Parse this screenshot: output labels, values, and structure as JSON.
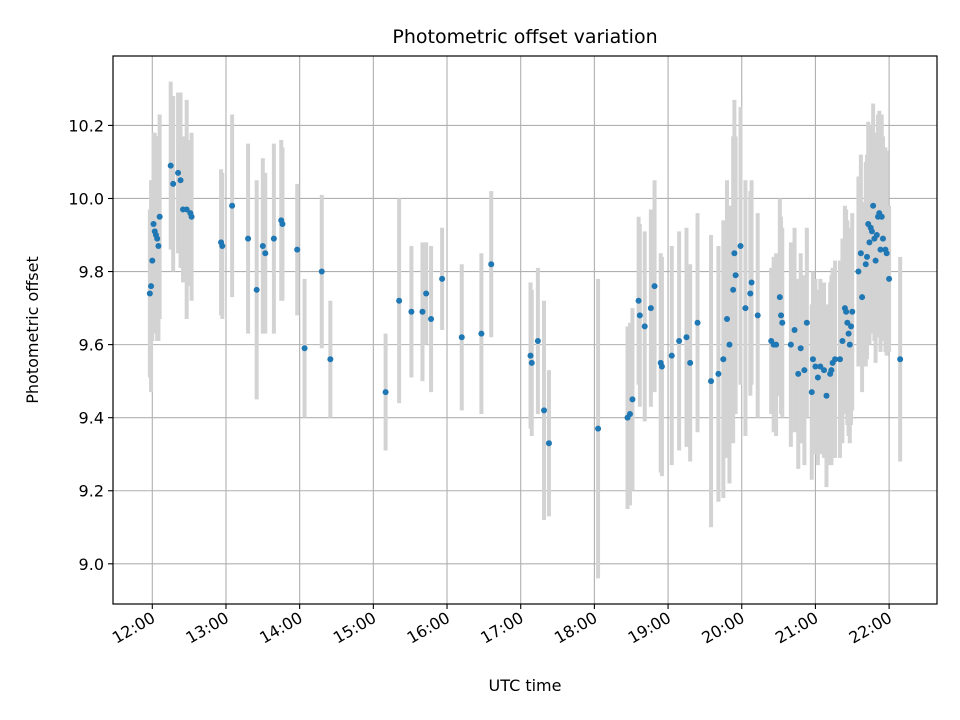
{
  "chart_data": {
    "type": "scatter",
    "title": "Photometric offset variation",
    "xlabel": "UTC time",
    "ylabel": "Photometric offset",
    "x_unit": "UTC time (HH:MM)",
    "xlim": [
      "11:28",
      "22:39"
    ],
    "ylim": [
      8.89,
      10.39
    ],
    "grid": true,
    "xticks": [
      "12:00",
      "13:00",
      "14:00",
      "15:00",
      "16:00",
      "17:00",
      "18:00",
      "19:00",
      "20:00",
      "21:00",
      "22:00"
    ],
    "yticks": [
      9.0,
      9.2,
      9.4,
      9.6,
      9.8,
      10.0,
      10.2
    ],
    "ytick_labels": [
      "9.0",
      "9.2",
      "9.4",
      "9.6",
      "9.8",
      "10.0",
      "10.2"
    ],
    "colors": {
      "point": "#1f77b4",
      "errorbar": "#d3d3d3",
      "grid": "#b0b0b0"
    },
    "series": [
      {
        "points": [
          {
            "x": "11:58",
            "y": 9.74,
            "err": 0.23
          },
          {
            "x": "11:59",
            "y": 9.76,
            "err": 0.29
          },
          {
            "x": "12:00",
            "y": 9.83,
            "err": 0.22
          },
          {
            "x": "12:01",
            "y": 9.93,
            "err": 0.25
          },
          {
            "x": "12:02",
            "y": 9.91,
            "err": 0.27
          },
          {
            "x": "12:03",
            "y": 9.9,
            "err": 0.27
          },
          {
            "x": "12:04",
            "y": 9.89,
            "err": 0.28
          },
          {
            "x": "12:05",
            "y": 9.87,
            "err": 0.26
          },
          {
            "x": "12:06",
            "y": 9.95,
            "err": 0.28
          },
          {
            "x": "12:15",
            "y": 10.09,
            "err": 0.23
          },
          {
            "x": "12:17",
            "y": 10.04,
            "err": 0.24
          },
          {
            "x": "12:21",
            "y": 10.07,
            "err": 0.22
          },
          {
            "x": "12:23",
            "y": 10.05,
            "err": 0.24
          },
          {
            "x": "12:25",
            "y": 9.97,
            "err": 0.2
          },
          {
            "x": "12:28",
            "y": 9.97,
            "err": 0.3
          },
          {
            "x": "12:31",
            "y": 9.96,
            "err": 0.2
          },
          {
            "x": "12:32",
            "y": 9.95,
            "err": 0.23
          },
          {
            "x": "12:56",
            "y": 9.88,
            "err": 0.2
          },
          {
            "x": "12:57",
            "y": 9.87,
            "err": 0.2
          },
          {
            "x": "13:05",
            "y": 9.98,
            "err": 0.25
          },
          {
            "x": "13:18",
            "y": 9.89,
            "err": 0.26
          },
          {
            "x": "13:25",
            "y": 9.75,
            "err": 0.3
          },
          {
            "x": "13:30",
            "y": 9.87,
            "err": 0.24
          },
          {
            "x": "13:32",
            "y": 9.85,
            "err": 0.22
          },
          {
            "x": "13:39",
            "y": 9.89,
            "err": 0.26
          },
          {
            "x": "13:45",
            "y": 9.94,
            "err": 0.22
          },
          {
            "x": "13:46",
            "y": 9.93,
            "err": 0.21
          },
          {
            "x": "13:58",
            "y": 9.86,
            "err": 0.18
          },
          {
            "x": "14:04",
            "y": 9.59,
            "err": 0.19
          },
          {
            "x": "14:18",
            "y": 9.8,
            "err": 0.21
          },
          {
            "x": "14:25",
            "y": 9.56,
            "err": 0.16
          },
          {
            "x": "15:10",
            "y": 9.47,
            "err": 0.16
          },
          {
            "x": "15:21",
            "y": 9.72,
            "err": 0.28
          },
          {
            "x": "15:31",
            "y": 9.69,
            "err": 0.18
          },
          {
            "x": "15:40",
            "y": 9.69,
            "err": 0.19
          },
          {
            "x": "15:43",
            "y": 9.74,
            "err": 0.14
          },
          {
            "x": "15:47",
            "y": 9.67,
            "err": 0.2
          },
          {
            "x": "15:56",
            "y": 9.78,
            "err": 0.14
          },
          {
            "x": "16:12",
            "y": 9.62,
            "err": 0.2
          },
          {
            "x": "16:28",
            "y": 9.63,
            "err": 0.22
          },
          {
            "x": "16:36",
            "y": 9.82,
            "err": 0.2
          },
          {
            "x": "17:08",
            "y": 9.57,
            "err": 0.2
          },
          {
            "x": "17:09",
            "y": 9.55,
            "err": 0.2
          },
          {
            "x": "17:14",
            "y": 9.61,
            "err": 0.2
          },
          {
            "x": "17:19",
            "y": 9.42,
            "err": 0.3
          },
          {
            "x": "17:23",
            "y": 9.33,
            "err": 0.2
          },
          {
            "x": "18:03",
            "y": 9.37,
            "err": 0.41
          },
          {
            "x": "18:27",
            "y": 9.4,
            "err": 0.25
          },
          {
            "x": "18:29",
            "y": 9.41,
            "err": 0.25
          },
          {
            "x": "18:31",
            "y": 9.45,
            "err": 0.25
          },
          {
            "x": "18:36",
            "y": 9.72,
            "err": 0.23
          },
          {
            "x": "18:37",
            "y": 9.68,
            "err": 0.25
          },
          {
            "x": "18:41",
            "y": 9.65,
            "err": 0.26
          },
          {
            "x": "18:46",
            "y": 9.7,
            "err": 0.27
          },
          {
            "x": "18:49",
            "y": 9.76,
            "err": 0.29
          },
          {
            "x": "18:54",
            "y": 9.55,
            "err": 0.3
          },
          {
            "x": "18:55",
            "y": 9.54,
            "err": 0.3
          },
          {
            "x": "19:03",
            "y": 9.57,
            "err": 0.3
          },
          {
            "x": "19:09",
            "y": 9.61,
            "err": 0.3
          },
          {
            "x": "19:15",
            "y": 9.62,
            "err": 0.3
          },
          {
            "x": "19:18",
            "y": 9.55,
            "err": 0.27
          },
          {
            "x": "19:24",
            "y": 9.66,
            "err": 0.3
          },
          {
            "x": "19:35",
            "y": 9.5,
            "err": 0.4
          },
          {
            "x": "19:41",
            "y": 9.52,
            "err": 0.35
          },
          {
            "x": "19:45",
            "y": 9.56,
            "err": 0.38
          },
          {
            "x": "19:48",
            "y": 9.67,
            "err": 0.38
          },
          {
            "x": "19:50",
            "y": 9.6,
            "err": 0.38
          },
          {
            "x": "19:53",
            "y": 9.75,
            "err": 0.42
          },
          {
            "x": "19:54",
            "y": 9.85,
            "err": 0.42
          },
          {
            "x": "19:55",
            "y": 9.79,
            "err": 0.38
          },
          {
            "x": "19:59",
            "y": 9.87,
            "err": 0.38
          },
          {
            "x": "20:03",
            "y": 9.7,
            "err": 0.35
          },
          {
            "x": "20:07",
            "y": 9.74,
            "err": 0.28
          },
          {
            "x": "20:08",
            "y": 9.77,
            "err": 0.28
          },
          {
            "x": "20:13",
            "y": 9.68,
            "err": 0.28
          },
          {
            "x": "20:24",
            "y": 9.61,
            "err": 0.2
          },
          {
            "x": "20:26",
            "y": 9.6,
            "err": 0.24
          },
          {
            "x": "20:28",
            "y": 9.6,
            "err": 0.25
          },
          {
            "x": "20:31",
            "y": 9.73,
            "err": 0.27
          },
          {
            "x": "20:32",
            "y": 9.68,
            "err": 0.27
          },
          {
            "x": "20:33",
            "y": 9.66,
            "err": 0.26
          },
          {
            "x": "20:40",
            "y": 9.6,
            "err": 0.28
          },
          {
            "x": "20:43",
            "y": 9.64,
            "err": 0.28
          },
          {
            "x": "20:46",
            "y": 9.52,
            "err": 0.26
          },
          {
            "x": "20:48",
            "y": 9.59,
            "err": 0.26
          },
          {
            "x": "20:51",
            "y": 9.53,
            "err": 0.26
          },
          {
            "x": "20:53",
            "y": 9.66,
            "err": 0.26
          },
          {
            "x": "20:57",
            "y": 9.47,
            "err": 0.24
          },
          {
            "x": "20:58",
            "y": 9.56,
            "err": 0.24
          },
          {
            "x": "21:00",
            "y": 9.54,
            "err": 0.24
          },
          {
            "x": "21:02",
            "y": 9.51,
            "err": 0.24
          },
          {
            "x": "21:04",
            "y": 9.54,
            "err": 0.24
          },
          {
            "x": "21:07",
            "y": 9.53,
            "err": 0.24
          },
          {
            "x": "21:09",
            "y": 9.46,
            "err": 0.25
          },
          {
            "x": "21:12",
            "y": 9.52,
            "err": 0.25
          },
          {
            "x": "21:13",
            "y": 9.53,
            "err": 0.26
          },
          {
            "x": "21:14",
            "y": 9.55,
            "err": 0.26
          },
          {
            "x": "21:16",
            "y": 9.56,
            "err": 0.27
          },
          {
            "x": "21:20",
            "y": 9.56,
            "err": 0.27
          },
          {
            "x": "21:22",
            "y": 9.61,
            "err": 0.28
          },
          {
            "x": "21:24",
            "y": 9.7,
            "err": 0.28
          },
          {
            "x": "21:25",
            "y": 9.69,
            "err": 0.28
          },
          {
            "x": "21:26",
            "y": 9.66,
            "err": 0.28
          },
          {
            "x": "21:27",
            "y": 9.63,
            "err": 0.28
          },
          {
            "x": "21:28",
            "y": 9.6,
            "err": 0.27
          },
          {
            "x": "21:29",
            "y": 9.65,
            "err": 0.27
          },
          {
            "x": "21:30",
            "y": 9.69,
            "err": 0.27
          },
          {
            "x": "21:35",
            "y": 9.8,
            "err": 0.26
          },
          {
            "x": "21:37",
            "y": 9.85,
            "err": 0.27
          },
          {
            "x": "21:38",
            "y": 9.73,
            "err": 0.26
          },
          {
            "x": "21:41",
            "y": 9.82,
            "err": 0.28
          },
          {
            "x": "21:42",
            "y": 9.84,
            "err": 0.28
          },
          {
            "x": "21:43",
            "y": 9.93,
            "err": 0.28
          },
          {
            "x": "21:44",
            "y": 9.88,
            "err": 0.28
          },
          {
            "x": "21:45",
            "y": 9.92,
            "err": 0.28
          },
          {
            "x": "21:46",
            "y": 9.91,
            "err": 0.28
          },
          {
            "x": "21:47",
            "y": 9.98,
            "err": 0.28
          },
          {
            "x": "21:48",
            "y": 9.89,
            "err": 0.28
          },
          {
            "x": "21:49",
            "y": 9.83,
            "err": 0.28
          },
          {
            "x": "21:50",
            "y": 9.9,
            "err": 0.28
          },
          {
            "x": "21:51",
            "y": 9.95,
            "err": 0.28
          },
          {
            "x": "21:52",
            "y": 9.96,
            "err": 0.28
          },
          {
            "x": "21:53",
            "y": 9.86,
            "err": 0.28
          },
          {
            "x": "21:54",
            "y": 9.95,
            "err": 0.28
          },
          {
            "x": "21:55",
            "y": 9.89,
            "err": 0.28
          },
          {
            "x": "21:57",
            "y": 9.86,
            "err": 0.28
          },
          {
            "x": "21:58",
            "y": 9.85,
            "err": 0.28
          },
          {
            "x": "22:00",
            "y": 9.78,
            "err": 0.2
          },
          {
            "x": "22:09",
            "y": 9.56,
            "err": 0.28
          }
        ]
      }
    ]
  }
}
